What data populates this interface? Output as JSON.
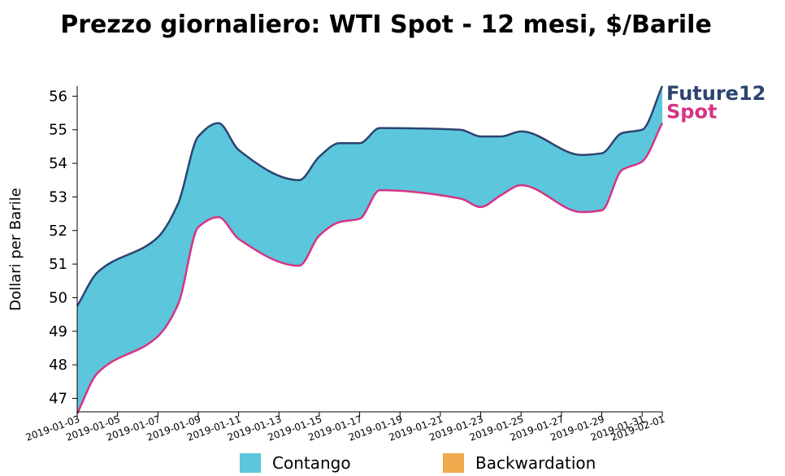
{
  "chart_data": {
    "type": "area",
    "title": "Prezzo giornaliero: WTI Spot - 12 mesi, $/Barile",
    "ylabel": "Dollari per Barile",
    "xlabel": "",
    "ylim": [
      46.6,
      56.3
    ],
    "xlim": [
      "2019-01-03",
      "2019-02-01"
    ],
    "grid": false,
    "yticks": [
      47,
      48,
      49,
      50,
      51,
      52,
      53,
      54,
      55,
      56
    ],
    "xticks": [
      "2019-01-03",
      "2019-01-05",
      "2019-01-07",
      "2019-01-09",
      "2019-01-11",
      "2019-01-13",
      "2019-01-15",
      "2019-01-17",
      "2019-01-19",
      "2019-01-21",
      "2019-01-23",
      "2019-01-25",
      "2019-01-27",
      "2019-01-29",
      "2019-01-31",
      "2019-02-01"
    ],
    "dates": [
      "2019-01-03",
      "2019-01-04",
      "2019-01-07",
      "2019-01-08",
      "2019-01-09",
      "2019-01-10",
      "2019-01-11",
      "2019-01-14",
      "2019-01-15",
      "2019-01-16",
      "2019-01-17",
      "2019-01-18",
      "2019-01-22",
      "2019-01-23",
      "2019-01-24",
      "2019-01-25",
      "2019-01-28",
      "2019-01-29",
      "2019-01-30",
      "2019-01-31",
      "2019-02-01"
    ],
    "series": [
      {
        "name": "Future12",
        "color": "#2c4470",
        "values": [
          49.75,
          50.75,
          51.8,
          52.8,
          54.8,
          55.2,
          54.4,
          53.5,
          54.2,
          54.6,
          54.6,
          55.05,
          55.0,
          54.8,
          54.8,
          54.95,
          54.25,
          54.3,
          54.9,
          55.0,
          56.3
        ]
      },
      {
        "name": "Spot",
        "color": "#d63384",
        "values": [
          46.55,
          47.75,
          48.85,
          49.8,
          52.1,
          52.4,
          51.75,
          50.95,
          51.85,
          52.25,
          52.35,
          53.2,
          52.95,
          52.7,
          53.05,
          53.35,
          52.55,
          52.6,
          53.8,
          54.05,
          55.2
        ]
      }
    ],
    "legend": {
      "placement": "bottom",
      "items": [
        {
          "label": "Contango",
          "color": "#5bc6dc"
        },
        {
          "label": "Backwardation",
          "color": "#eeaa4c"
        }
      ]
    }
  }
}
